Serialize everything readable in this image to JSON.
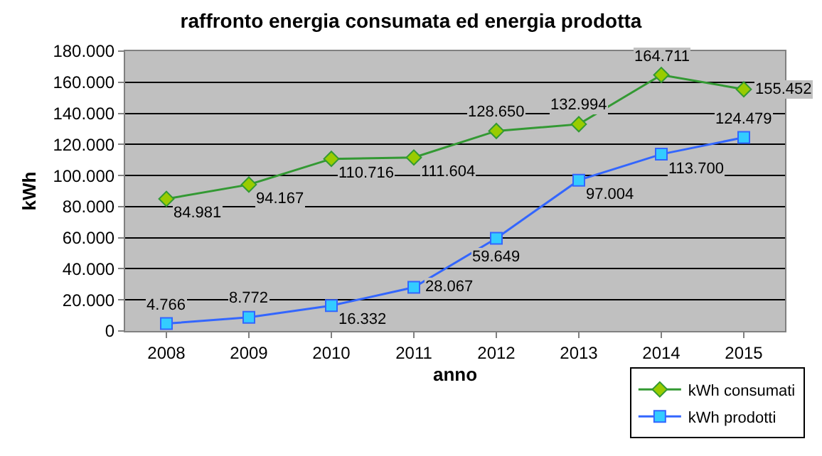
{
  "chart_data": {
    "type": "line",
    "title": "raffronto energia consumata ed energia prodotta",
    "xlabel": "anno",
    "ylabel": "kWh",
    "categories": [
      "2008",
      "2009",
      "2010",
      "2011",
      "2012",
      "2013",
      "2014",
      "2015"
    ],
    "series": [
      {
        "name": "kWh consumati",
        "color": "#339933",
        "marker": "diamond",
        "values": [
          84981,
          94167,
          110716,
          111604,
          128650,
          132994,
          164711,
          155452
        ],
        "value_labels": [
          "84.981",
          "94.167",
          "110.716",
          "111.604",
          "128.650",
          "132.994",
          "164.711",
          "155.452"
        ]
      },
      {
        "name": "kWh prodotti",
        "color": "#3366ff",
        "marker": "square",
        "values": [
          4766,
          8772,
          16332,
          28067,
          59649,
          97004,
          113700,
          124479
        ],
        "value_labels": [
          "4.766",
          "8.772",
          "16.332",
          "28.067",
          "59.649",
          "97.004",
          "113.700",
          "124.479"
        ]
      }
    ],
    "ylim": [
      0,
      180000
    ],
    "yticks": [
      {
        "value": 0,
        "label": "0"
      },
      {
        "value": 20000,
        "label": "20.000"
      },
      {
        "value": 40000,
        "label": "40.000"
      },
      {
        "value": 60000,
        "label": "60.000"
      },
      {
        "value": 80000,
        "label": "80.000"
      },
      {
        "value": 100000,
        "label": "100.000"
      },
      {
        "value": 120000,
        "label": "120.000"
      },
      {
        "value": 140000,
        "label": "140.000"
      },
      {
        "value": 160000,
        "label": "160.000"
      },
      {
        "value": 180000,
        "label": "180.000"
      }
    ],
    "grid": "y",
    "legend": "bottom right",
    "line_style": "solid"
  }
}
